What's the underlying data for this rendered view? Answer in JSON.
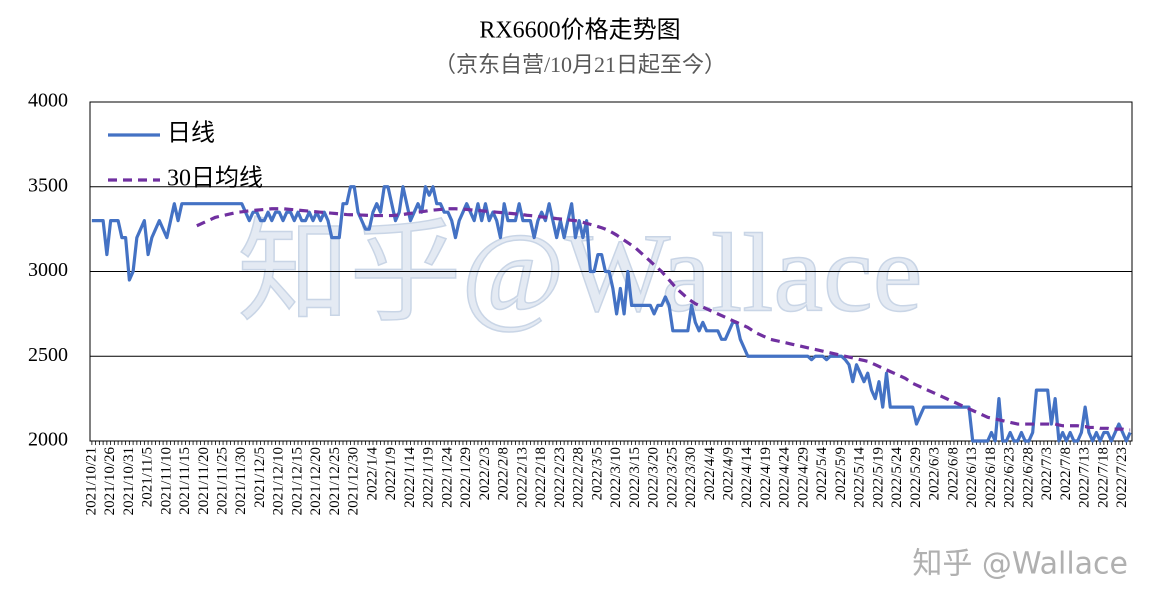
{
  "chart_data": {
    "type": "line",
    "title": "RX6600价格走势图",
    "subtitle": "（京东自营/10月21日起至今）",
    "watermark": "知乎@Wallace",
    "credit": "知乎 @Wallace",
    "ylim": [
      2000,
      4000
    ],
    "yticks": [
      2000,
      2500,
      3000,
      3500,
      4000
    ],
    "grid": true,
    "legend": "upper left",
    "categories": [
      "2021/10/21",
      null,
      null,
      null,
      null,
      "2021/10/26",
      null,
      null,
      null,
      null,
      "2021/10/31",
      null,
      null,
      null,
      null,
      "2021/11/5",
      null,
      null,
      null,
      null,
      "2021/11/10",
      null,
      null,
      null,
      null,
      "2021/11/15",
      null,
      null,
      null,
      null,
      "2021/11/20",
      null,
      null,
      null,
      null,
      "2021/11/25",
      null,
      null,
      null,
      null,
      "2021/11/30",
      null,
      null,
      null,
      null,
      "2021/12/5",
      null,
      null,
      null,
      null,
      "2021/12/10",
      null,
      null,
      null,
      null,
      "2021/12/15",
      null,
      null,
      null,
      null,
      "2021/12/20",
      null,
      null,
      null,
      null,
      "2021/12/25",
      null,
      null,
      null,
      null,
      "2021/12/30",
      null,
      null,
      null,
      null,
      "2022/1/4",
      null,
      null,
      null,
      null,
      "2022/1/9",
      null,
      null,
      null,
      null,
      "2022/1/14",
      null,
      null,
      null,
      null,
      "2022/1/19",
      null,
      null,
      null,
      null,
      "2022/1/24",
      null,
      null,
      null,
      null,
      "2022/1/29",
      null,
      null,
      null,
      null,
      "2022/2/3",
      null,
      null,
      null,
      null,
      "2022/2/8",
      null,
      null,
      null,
      null,
      "2022/2/13",
      null,
      null,
      null,
      null,
      "2022/2/18",
      null,
      null,
      null,
      null,
      "2022/2/23",
      null,
      null,
      null,
      null,
      "2022/2/28",
      null,
      null,
      null,
      null,
      "2022/3/5",
      null,
      null,
      null,
      null,
      "2022/3/10",
      null,
      null,
      null,
      null,
      "2022/3/15",
      null,
      null,
      null,
      null,
      "2022/3/20",
      null,
      null,
      null,
      null,
      "2022/3/25",
      null,
      null,
      null,
      null,
      "2022/3/30",
      null,
      null,
      null,
      null,
      "2022/4/4",
      null,
      null,
      null,
      null,
      "2022/4/9",
      null,
      null,
      null,
      null,
      "2022/4/14",
      null,
      null,
      null,
      null,
      "2022/4/19",
      null,
      null,
      null,
      null,
      "2022/4/24",
      null,
      null,
      null,
      null,
      "2022/4/29",
      null,
      null,
      null,
      null,
      "2022/5/4",
      null,
      null,
      null,
      null,
      "2022/5/9",
      null,
      null,
      null,
      null,
      "2022/5/14",
      null,
      null,
      null,
      null,
      "2022/5/19",
      null,
      null,
      null,
      null,
      "2022/5/24",
      null,
      null,
      null,
      null,
      "2022/5/29",
      null,
      null,
      null,
      null,
      "2022/6/3",
      null,
      null,
      null,
      null,
      "2022/6/8",
      null,
      null,
      null,
      null,
      "2022/6/13",
      null,
      null,
      null,
      null,
      "2022/6/18",
      null,
      null,
      null,
      null,
      "2022/6/23",
      null,
      null,
      null,
      null,
      "2022/6/28",
      null,
      null,
      null,
      null,
      "2022/7/3",
      null,
      null,
      null,
      null,
      "2022/7/8",
      null,
      null,
      null,
      null,
      "2022/7/13",
      null,
      null,
      null,
      null,
      "2022/7/18",
      null,
      null,
      null,
      null,
      "2022/7/23",
      null,
      null
    ],
    "series": [
      {
        "name": "日线",
        "color": "#4472c4",
        "dash": false,
        "values": [
          3300,
          3300,
          3300,
          3300,
          3100,
          3300,
          3300,
          3300,
          3200,
          3200,
          2950,
          3000,
          3200,
          3250,
          3300,
          3100,
          3200,
          3250,
          3300,
          3250,
          3200,
          3300,
          3400,
          3300,
          3400,
          3400,
          3400,
          3400,
          3400,
          3400,
          3400,
          3400,
          3400,
          3400,
          3400,
          3400,
          3400,
          3400,
          3400,
          3400,
          3400,
          3350,
          3300,
          3350,
          3350,
          3300,
          3300,
          3350,
          3300,
          3350,
          3350,
          3300,
          3350,
          3350,
          3300,
          3350,
          3300,
          3300,
          3350,
          3300,
          3350,
          3300,
          3350,
          3300,
          3200,
          3200,
          3200,
          3400,
          3400,
          3500,
          3500,
          3350,
          3300,
          3250,
          3250,
          3350,
          3400,
          3350,
          3500,
          3500,
          3400,
          3300,
          3350,
          3500,
          3400,
          3300,
          3350,
          3400,
          3350,
          3500,
          3450,
          3500,
          3400,
          3400,
          3350,
          3350,
          3300,
          3200,
          3300,
          3350,
          3400,
          3350,
          3300,
          3400,
          3300,
          3400,
          3300,
          3350,
          3300,
          3200,
          3400,
          3300,
          3300,
          3300,
          3400,
          3300,
          3300,
          3300,
          3200,
          3300,
          3350,
          3300,
          3400,
          3300,
          3200,
          3300,
          3200,
          3300,
          3400,
          3200,
          3300,
          3200,
          3300,
          3000,
          3000,
          3100,
          3100,
          3000,
          3000,
          2900,
          2750,
          2900,
          2750,
          3000,
          2800,
          2800,
          2800,
          2800,
          2800,
          2800,
          2750,
          2800,
          2800,
          2850,
          2800,
          2650,
          2650,
          2650,
          2650,
          2650,
          2800,
          2700,
          2650,
          2700,
          2650,
          2650,
          2650,
          2650,
          2600,
          2600,
          2650,
          2700,
          2700,
          2600,
          2550,
          2500,
          2500,
          2500,
          2500,
          2500,
          2500,
          2500,
          2500,
          2500,
          2500,
          2500,
          2500,
          2500,
          2500,
          2500,
          2500,
          2500,
          2480,
          2500,
          2500,
          2500,
          2480,
          2500,
          2500,
          2500,
          2500,
          2480,
          2450,
          2350,
          2450,
          2400,
          2350,
          2400,
          2300,
          2250,
          2350,
          2200,
          2400,
          2200,
          2200,
          2200,
          2200,
          2200,
          2200,
          2200,
          2100,
          2150,
          2200,
          2200,
          2200,
          2200,
          2200,
          2200,
          2200,
          2200,
          2200,
          2200,
          2200,
          2200,
          2200,
          2000,
          2000,
          2000,
          2000,
          2000,
          2050,
          2000,
          2250,
          2000,
          2000,
          2050,
          2000,
          2000,
          2050,
          2000,
          2000,
          2050,
          2300,
          2300,
          2300,
          2300,
          2100,
          2250,
          2000,
          2050,
          2000,
          2050,
          2000,
          2000,
          2050,
          2200,
          2050,
          2000,
          2050,
          2000,
          2050,
          2050,
          2000,
          2050,
          2100,
          2050,
          2000,
          2050
        ]
      },
      {
        "name": "30日均线",
        "color": "#7030a0",
        "dash": true,
        "values": [
          null,
          null,
          null,
          null,
          null,
          null,
          null,
          null,
          null,
          null,
          null,
          null,
          null,
          null,
          null,
          null,
          null,
          null,
          null,
          null,
          null,
          null,
          null,
          null,
          null,
          null,
          null,
          null,
          3270,
          3280,
          3290,
          3300,
          3310,
          3320,
          3325,
          3330,
          3335,
          3340,
          3345,
          3350,
          3352,
          3355,
          3358,
          3360,
          3362,
          3364,
          3366,
          3368,
          3370,
          3370,
          3370,
          3370,
          3368,
          3366,
          3364,
          3362,
          3360,
          3358,
          3356,
          3354,
          3352,
          3350,
          3348,
          3346,
          3344,
          3342,
          3340,
          3338,
          3336,
          3335,
          3335,
          3334,
          3333,
          3332,
          3331,
          3330,
          3330,
          3330,
          3330,
          3330,
          3330,
          3332,
          3334,
          3336,
          3340,
          3343,
          3346,
          3350,
          3353,
          3356,
          3360,
          3362,
          3364,
          3366,
          3368,
          3370,
          3370,
          3370,
          3369,
          3368,
          3366,
          3364,
          3362,
          3360,
          3358,
          3356,
          3354,
          3352,
          3350,
          3348,
          3346,
          3344,
          3342,
          3340,
          3338,
          3335,
          3332,
          3330,
          3328,
          3325,
          3322,
          3320,
          3318,
          3315,
          3312,
          3310,
          3308,
          3305,
          3302,
          3300,
          3296,
          3290,
          3284,
          3278,
          3272,
          3265,
          3258,
          3250,
          3240,
          3228,
          3215,
          3200,
          3185,
          3170,
          3155,
          3140,
          3120,
          3100,
          3080,
          3060,
          3040,
          3020,
          3000,
          2975,
          2950,
          2925,
          2900,
          2880,
          2860,
          2840,
          2825,
          2810,
          2800,
          2790,
          2780,
          2770,
          2760,
          2750,
          2740,
          2730,
          2720,
          2710,
          2700,
          2690,
          2680,
          2670,
          2655,
          2640,
          2630,
          2620,
          2610,
          2600,
          2595,
          2590,
          2585,
          2580,
          2575,
          2570,
          2565,
          2560,
          2555,
          2550,
          2545,
          2540,
          2535,
          2530,
          2525,
          2520,
          2515,
          2510,
          2505,
          2500,
          2495,
          2490,
          2485,
          2480,
          2475,
          2470,
          2460,
          2450,
          2440,
          2430,
          2420,
          2410,
          2400,
          2390,
          2380,
          2370,
          2355,
          2340,
          2330,
          2320,
          2310,
          2300,
          2290,
          2280,
          2270,
          2260,
          2250,
          2240,
          2230,
          2220,
          2210,
          2200,
          2190,
          2180,
          2170,
          2160,
          2150,
          2140,
          2135,
          2130,
          2125,
          2120,
          2115,
          2110,
          2105,
          2100,
          2100,
          2100,
          2100,
          2100,
          2100,
          2100,
          2100,
          2100,
          2100,
          2100,
          2095,
          2090,
          2090,
          2090,
          2090,
          2090,
          2085,
          2085,
          2080,
          2080,
          2080,
          2075,
          2075,
          2075,
          2070,
          2070,
          2070,
          2070,
          2065,
          2065
        ]
      }
    ]
  }
}
